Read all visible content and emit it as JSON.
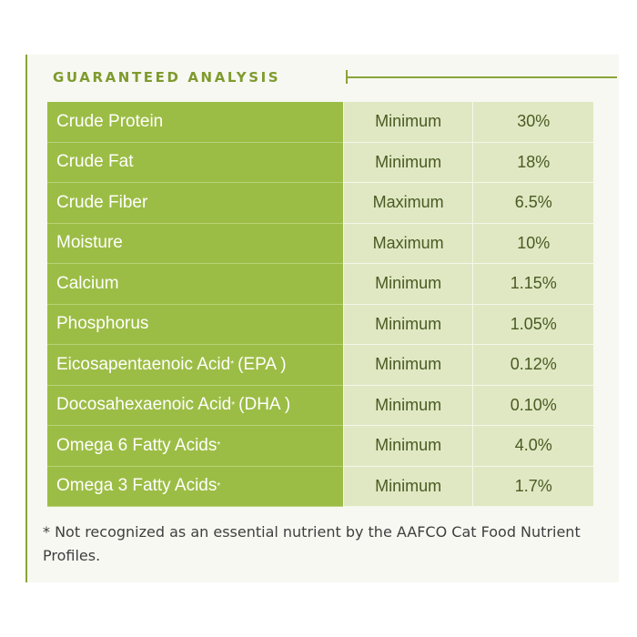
{
  "header": {
    "title": "GUARANTEED ANALYSIS"
  },
  "rows": [
    {
      "name": "Crude Protein",
      "marker": "",
      "suffix": "",
      "basis": "Minimum",
      "value": "30%"
    },
    {
      "name": "Crude Fat",
      "marker": "",
      "suffix": "",
      "basis": "Minimum",
      "value": "18%"
    },
    {
      "name": "Crude Fiber",
      "marker": "",
      "suffix": "",
      "basis": "Maximum",
      "value": "6.5%"
    },
    {
      "name": "Moisture",
      "marker": "",
      "suffix": "",
      "basis": "Maximum",
      "value": "10%"
    },
    {
      "name": "Calcium",
      "marker": "",
      "suffix": "",
      "basis": "Minimum",
      "value": "1.15%"
    },
    {
      "name": "Phosphorus",
      "marker": "",
      "suffix": "",
      "basis": "Minimum",
      "value": "1.05%"
    },
    {
      "name": "Eicosapentaenoic Acid",
      "marker": "*",
      "suffix": "(EPA )",
      "basis": "Minimum",
      "value": "0.12%"
    },
    {
      "name": "Docosahexaenoic Acid",
      "marker": "*",
      "suffix": "(DHA )",
      "basis": "Minimum",
      "value": "0.10%"
    },
    {
      "name": "Omega 6 Fatty Acids",
      "marker": "*",
      "suffix": "",
      "basis": "Minimum",
      "value": "4.0%"
    },
    {
      "name": "Omega 3 Fatty Acids",
      "marker": "*",
      "suffix": "",
      "basis": "Minimum",
      "value": "1.7%"
    }
  ],
  "footnote": "* Not recognized as an essential nutrient by the AAFCO Cat Food Nutrient Profiles.",
  "colors": {
    "accent": "#9cbd45",
    "header_text": "#7f9a2e",
    "value_bg": "#dfe8c3"
  }
}
